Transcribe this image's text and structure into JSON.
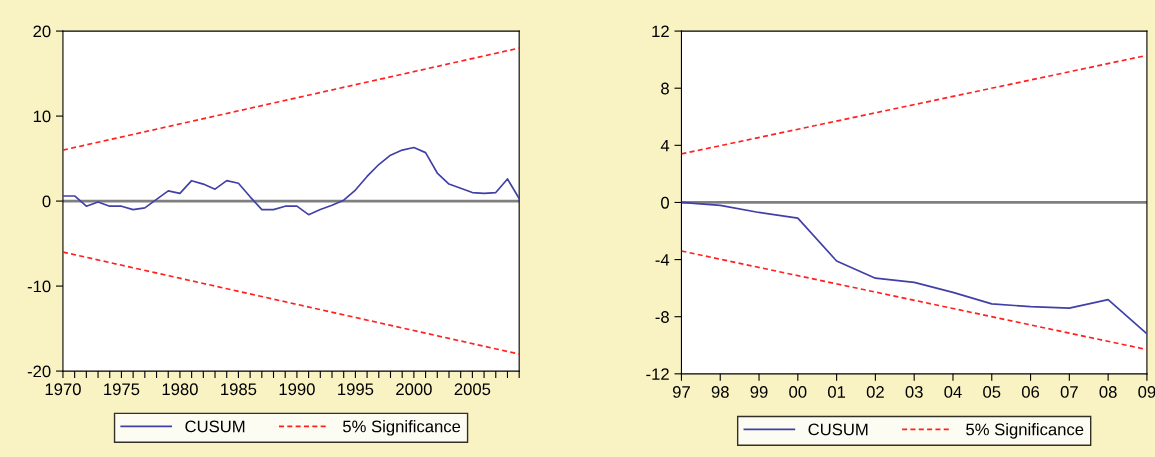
{
  "chart_data": [
    {
      "type": "line",
      "x": [
        1970,
        1971,
        1972,
        1973,
        1974,
        1975,
        1976,
        1977,
        1978,
        1979,
        1980,
        1981,
        1982,
        1983,
        1984,
        1985,
        1986,
        1987,
        1988,
        1989,
        1990,
        1991,
        1992,
        1993,
        1994,
        1995,
        1996,
        1997,
        1998,
        1999,
        2000,
        2001,
        2002,
        2003,
        2004,
        2005,
        2006,
        2007,
        2008,
        2009
      ],
      "series": [
        {
          "name": "CUSUM",
          "color": "#4040a8",
          "line_style": "solid",
          "values": [
            0.6,
            0.6,
            -0.6,
            -0.1,
            -0.6,
            -0.6,
            -1.0,
            -0.8,
            0.2,
            1.2,
            0.9,
            2.4,
            2.0,
            1.4,
            2.4,
            2.1,
            0.5,
            -1.0,
            -1.0,
            -0.6,
            -0.6,
            -1.6,
            -1.0,
            -0.5,
            0.1,
            1.3,
            2.9,
            4.3,
            5.4,
            6.0,
            6.3,
            5.7,
            3.3,
            2.0,
            1.5,
            1.0,
            0.9,
            1.0,
            2.6,
            0.3
          ]
        },
        {
          "name": "5% Significance",
          "color": "#ff2020",
          "line_style": "dashed",
          "x": [
            1970,
            2009
          ],
          "values": [
            6.0,
            18.0
          ]
        },
        {
          "color": "#ff2020",
          "line_style": "dashed",
          "x": [
            1970,
            2009
          ],
          "values": [
            -6.0,
            -18.0
          ]
        }
      ],
      "xlim": [
        1970,
        2009
      ],
      "xticks": [
        1970,
        {
          "value": 1971,
          "label": null
        },
        {
          "value": 1972,
          "label": null
        },
        {
          "value": 1973,
          "label": null
        },
        {
          "value": 1974,
          "label": null
        },
        1975,
        {
          "value": 1976,
          "label": null
        },
        {
          "value": 1977,
          "label": null
        },
        {
          "value": 1978,
          "label": null
        },
        {
          "value": 1979,
          "label": null
        },
        1980,
        {
          "value": 1981,
          "label": null
        },
        {
          "value": 1982,
          "label": null
        },
        {
          "value": 1983,
          "label": null
        },
        {
          "value": 1984,
          "label": null
        },
        1985,
        {
          "value": 1986,
          "label": null
        },
        {
          "value": 1987,
          "label": null
        },
        {
          "value": 1988,
          "label": null
        },
        {
          "value": 1989,
          "label": null
        },
        1990,
        {
          "value": 1991,
          "label": null
        },
        {
          "value": 1992,
          "label": null
        },
        {
          "value": 1993,
          "label": null
        },
        {
          "value": 1994,
          "label": null
        },
        1995,
        {
          "value": 1996,
          "label": null
        },
        {
          "value": 1997,
          "label": null
        },
        {
          "value": 1998,
          "label": null
        },
        {
          "value": 1999,
          "label": null
        },
        2000,
        {
          "value": 2001,
          "label": null
        },
        {
          "value": 2002,
          "label": null
        },
        {
          "value": 2003,
          "label": null
        },
        {
          "value": 2004,
          "label": null
        },
        2005,
        {
          "value": 2006,
          "label": null
        },
        {
          "value": 2007,
          "label": null
        },
        {
          "value": 2008,
          "label": null
        },
        {
          "value": 2009,
          "label": null
        }
      ],
      "ylim": [
        -20,
        20
      ],
      "yticks": [
        -20,
        -10,
        0,
        10,
        20
      ],
      "ref_lines": [
        {
          "axis": "y",
          "value": 0,
          "color": "#808080"
        }
      ],
      "grid": false,
      "legend": "bottom",
      "marker": "none"
    },
    {
      "type": "line",
      "x": [
        1997,
        1998,
        1999,
        2000,
        2001,
        2002,
        2003,
        2004,
        2005,
        2006,
        2007,
        2008,
        2009
      ],
      "series": [
        {
          "name": "CUSUM",
          "color": "#4040a8",
          "line_style": "solid",
          "values": [
            0.0,
            -0.2,
            -0.7,
            -1.1,
            -4.1,
            -5.3,
            -5.6,
            -6.3,
            -7.1,
            -7.3,
            -7.4,
            -6.8,
            -9.2
          ]
        },
        {
          "name": "5% Significance",
          "color": "#ff2020",
          "line_style": "dashed",
          "x": [
            1997,
            2009
          ],
          "values": [
            3.4,
            10.3
          ]
        },
        {
          "color": "#ff2020",
          "line_style": "dashed",
          "x": [
            1997,
            2009
          ],
          "values": [
            -3.4,
            -10.3
          ]
        }
      ],
      "xlim": [
        1997,
        2009
      ],
      "xticks": [
        {
          "value": 1997,
          "label": "97"
        },
        {
          "value": 1998,
          "label": "98"
        },
        {
          "value": 1999,
          "label": "99"
        },
        {
          "value": 2000,
          "label": "00"
        },
        {
          "value": 2001,
          "label": "01"
        },
        {
          "value": 2002,
          "label": "02"
        },
        {
          "value": 2003,
          "label": "03"
        },
        {
          "value": 2004,
          "label": "04"
        },
        {
          "value": 2005,
          "label": "05"
        },
        {
          "value": 2006,
          "label": "06"
        },
        {
          "value": 2007,
          "label": "07"
        },
        {
          "value": 2008,
          "label": "08"
        },
        {
          "value": 2009,
          "label": "09"
        }
      ],
      "ylim": [
        -12,
        12
      ],
      "yticks": [
        -12,
        -8,
        -4,
        0,
        4,
        8,
        12
      ],
      "ref_lines": [
        {
          "axis": "y",
          "value": 0,
          "color": "#808080"
        }
      ],
      "grid": false,
      "legend": "bottom",
      "marker": "none"
    }
  ]
}
